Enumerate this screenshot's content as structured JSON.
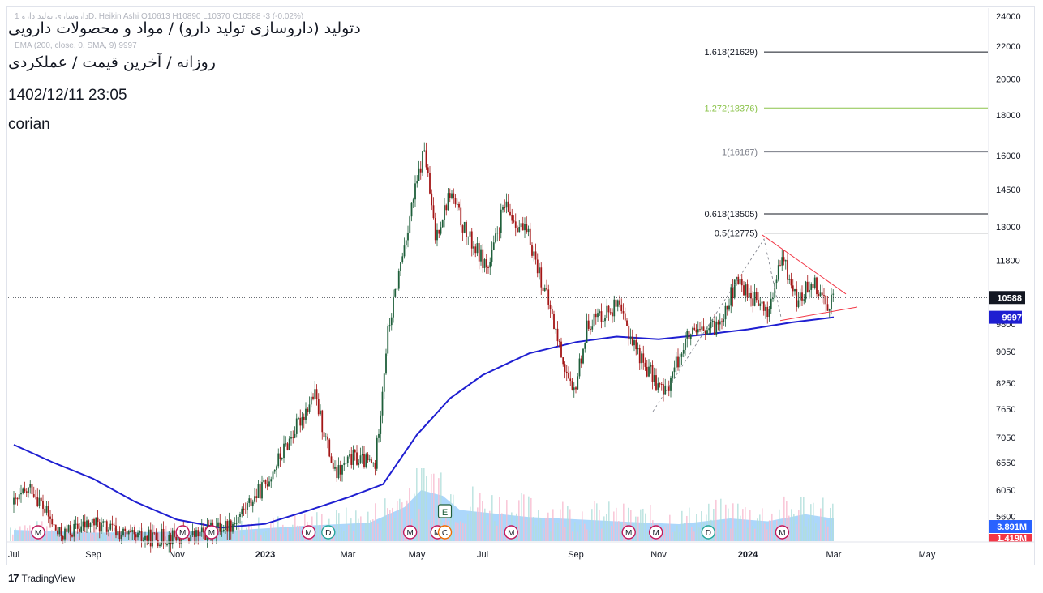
{
  "header": {
    "title": "دتولید (داروسازی تولید دارو) / مواد و محصولات دارویی",
    "subtitle": "روزانه / آخرین قیمت / عملکردی",
    "datetime": "1402/12/11 23:05",
    "author": "corian"
  },
  "legend": {
    "symbol_line": "1 داروسازی تولید داروD, Heikin Ashi O10613 H10890 L10370 C10588 -3 (-0.02%)",
    "ema_line": "EMA (200, close, 0, SMA, 9) 9997"
  },
  "brand": {
    "logo": "17",
    "name": "TradingView"
  },
  "colors": {
    "up": "#26a69a",
    "up_dark": "#1e5f3a",
    "down": "#a31515",
    "ema": "#1f1fd1",
    "volume": "#90caf9",
    "trendline": "#f23645",
    "price_badge": "#131722",
    "ema_badge": "#1f1fd1",
    "vol_badge_1": "#2962ff",
    "vol_badge_2": "#f23645",
    "fib_1618": "#131722",
    "fib_1272": "#8bc34a",
    "fib_1": "#787b86",
    "fib_0618": "#131722",
    "fib_05": "#131722"
  },
  "chart_data": {
    "type": "candlestick",
    "style": "Heikin Ashi",
    "timeframe": "daily",
    "y_scale": "log",
    "ylim": [
      5200,
      24500
    ],
    "y_ticks": [
      5600,
      6050,
      6550,
      7050,
      7650,
      8250,
      9050,
      9800,
      11800,
      13000,
      14500,
      16000,
      18000,
      20000,
      22000,
      24000
    ],
    "x_ticks": [
      "Jul",
      "Sep",
      "Nov",
      "2023",
      "Mar",
      "May",
      "Jul",
      "Sep",
      "Nov",
      "2024",
      "Mar",
      "May"
    ],
    "x_range": [
      "2022-07",
      "2024-05"
    ],
    "last_price": 10588,
    "ohlc_last": {
      "open": 10613,
      "high": 10890,
      "low": 10370,
      "close": 10588,
      "change": -3,
      "change_pct": "-0.02%"
    },
    "ema200": {
      "name": "EMA (200, close, 0, SMA, 9)",
      "last": 9997,
      "points": [
        [
          "2022-07-01",
          6900
        ],
        [
          "2022-08-01",
          6550
        ],
        [
          "2022-09-01",
          6250
        ],
        [
          "2022-10-01",
          5850
        ],
        [
          "2022-11-01",
          5550
        ],
        [
          "2022-12-01",
          5420
        ],
        [
          "2023-01-01",
          5480
        ],
        [
          "2023-02-01",
          5700
        ],
        [
          "2023-03-01",
          5920
        ],
        [
          "2023-04-01",
          6150
        ],
        [
          "2023-05-01",
          7100
        ],
        [
          "2023-06-01",
          7900
        ],
        [
          "2023-07-01",
          8450
        ],
        [
          "2023-08-01",
          9000
        ],
        [
          "2023-09-01",
          9300
        ],
        [
          "2023-10-01",
          9450
        ],
        [
          "2023-11-01",
          9380
        ],
        [
          "2023-12-01",
          9500
        ],
        [
          "2024-01-01",
          9650
        ],
        [
          "2024-02-01",
          9850
        ],
        [
          "2024-03-01",
          9997
        ]
      ]
    },
    "price_path": [
      [
        "2022-07-01",
        5800
      ],
      [
        "2022-07-15",
        6100
      ],
      [
        "2022-08-05",
        5300
      ],
      [
        "2022-09-01",
        5500
      ],
      [
        "2022-10-01",
        5250
      ],
      [
        "2022-11-15",
        5300
      ],
      [
        "2022-12-10",
        5500
      ],
      [
        "2023-01-01",
        6150
      ],
      [
        "2023-02-05",
        8000
      ],
      [
        "2023-02-20",
        6300
      ],
      [
        "2023-03-05",
        6650
      ],
      [
        "2023-03-25",
        6500
      ],
      [
        "2023-04-05",
        9500
      ],
      [
        "2023-04-25",
        13500
      ],
      [
        "2023-05-08",
        16300
      ],
      [
        "2023-05-18",
        12600
      ],
      [
        "2023-06-01",
        14400
      ],
      [
        "2023-06-15",
        12800
      ],
      [
        "2023-07-05",
        11500
      ],
      [
        "2023-07-15",
        13800
      ],
      [
        "2023-08-01",
        12600
      ],
      [
        "2023-08-15",
        10200
      ],
      [
        "2023-08-30",
        7900
      ],
      [
        "2023-09-10",
        9850
      ],
      [
        "2023-10-01",
        10350
      ],
      [
        "2023-10-20",
        8800
      ],
      [
        "2023-11-05",
        8000
      ],
      [
        "2023-11-20",
        9400
      ],
      [
        "2023-12-10",
        9700
      ],
      [
        "2023-12-25",
        11100
      ],
      [
        "2024-01-15",
        10100
      ],
      [
        "2024-01-25",
        11900
      ],
      [
        "2024-02-05",
        10400
      ],
      [
        "2024-02-15",
        11200
      ],
      [
        "2024-02-25",
        10400
      ],
      [
        "2024-03-01",
        10588
      ]
    ],
    "volume": {
      "last": "3.891M",
      "second": "1.419M",
      "avg_path": [
        [
          "2022-07-01",
          0.8
        ],
        [
          "2022-09-01",
          0.6
        ],
        [
          "2022-12-01",
          0.7
        ],
        [
          "2023-02-01",
          1.1
        ],
        [
          "2023-03-20",
          1.3
        ],
        [
          "2023-04-20",
          2.4
        ],
        [
          "2023-05-05",
          3.6
        ],
        [
          "2023-05-25",
          3.2
        ],
        [
          "2023-06-10",
          2.2
        ],
        [
          "2023-08-01",
          1.7
        ],
        [
          "2023-10-01",
          1.4
        ],
        [
          "2023-11-15",
          1.2
        ],
        [
          "2023-12-20",
          1.6
        ],
        [
          "2024-01-15",
          1.4
        ],
        [
          "2024-02-10",
          1.9
        ],
        [
          "2024-03-01",
          1.6
        ]
      ]
    },
    "fibonacci": [
      {
        "label": "1.618(21629)",
        "value": 21629,
        "colorKey": "fib_1618"
      },
      {
        "label": "1.272(18376)",
        "value": 18376,
        "colorKey": "fib_1272"
      },
      {
        "label": "1(16167)",
        "value": 16167,
        "colorKey": "fib_1"
      },
      {
        "label": "0.618(13505)",
        "value": 13505,
        "colorKey": "fib_0618"
      },
      {
        "label": "0.5(12775)",
        "value": 12775,
        "colorKey": "fib_05"
      }
    ],
    "events": [
      {
        "date": "2022-07-20",
        "label": "M"
      },
      {
        "date": "2022-11-05",
        "label": "M"
      },
      {
        "date": "2022-11-25",
        "label": "M"
      },
      {
        "date": "2023-02-01",
        "label": "M"
      },
      {
        "date": "2023-02-15",
        "label": "D"
      },
      {
        "date": "2023-04-25",
        "label": "M"
      },
      {
        "date": "2023-05-20",
        "label": "M"
      },
      {
        "date": "2023-05-27",
        "label": "C"
      },
      {
        "date": "2023-05-27",
        "label": "E"
      },
      {
        "date": "2023-07-20",
        "label": "M"
      },
      {
        "date": "2023-10-10",
        "label": "M"
      },
      {
        "date": "2023-10-30",
        "label": "M"
      },
      {
        "date": "2023-12-05",
        "label": "D"
      },
      {
        "date": "2024-01-25",
        "label": "M"
      }
    ]
  }
}
